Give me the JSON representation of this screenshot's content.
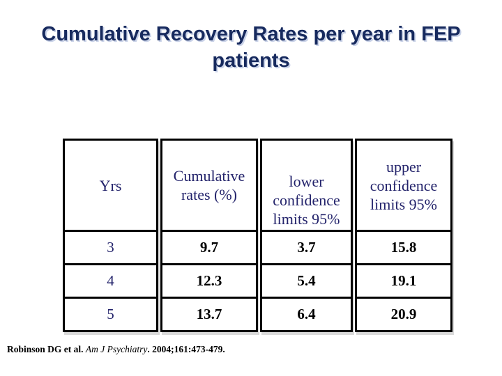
{
  "slide": {
    "title": "Cumulative Recovery Rates per year in FEP\npatients",
    "title_color": "#172a5e",
    "background_color": "#ffffff"
  },
  "table": {
    "headers": [
      "Yrs",
      "Cumulative\nrates (%)",
      "lower\nconfidence\nlimits 95%",
      "upper\nconfidence\nlimits 95%"
    ],
    "border_color": "#000000",
    "header_text_color": "#23236b"
  },
  "chart_data": {
    "type": "table",
    "title": "Cumulative Recovery Rates per year in FEP patients",
    "columns": [
      "Yrs",
      "Cumulative rates (%)",
      "lower confidence limits 95%",
      "upper confidence limits 95%"
    ],
    "rows": [
      [
        3,
        9.7,
        3.7,
        15.8
      ],
      [
        4,
        12.3,
        5.4,
        19.1
      ],
      [
        5,
        13.7,
        6.4,
        20.9
      ]
    ],
    "source": "Robinson DG et al. Am J Psychiatry. 2004;161:473-479."
  },
  "citation": {
    "authors": "Robinson DG et al.",
    "journal": "Am J Psychiatry",
    "details": ". 2004;161:473-479."
  }
}
